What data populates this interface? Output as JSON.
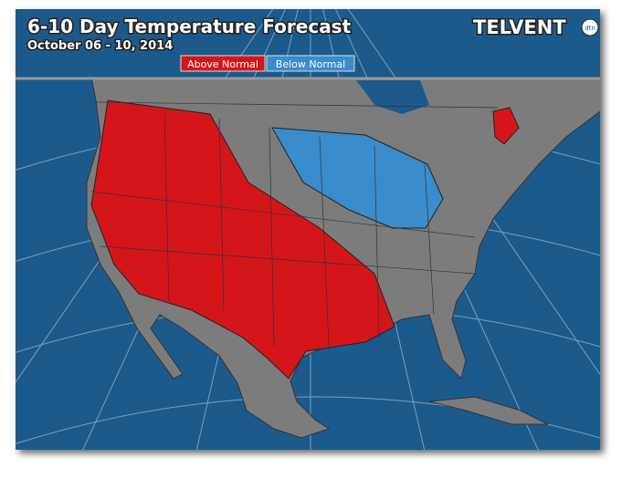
{
  "header": {
    "title": "6-10 Day Temperature Forecast",
    "subtitle": "October 06 - 10, 2014"
  },
  "legend": {
    "items": [
      {
        "label": "Above Normal",
        "color": "#d4161b"
      },
      {
        "label": "Below Normal",
        "color": "#3a8ccc"
      }
    ]
  },
  "logo": {
    "text": "TELVENT",
    "badge": "dtn"
  }
}
